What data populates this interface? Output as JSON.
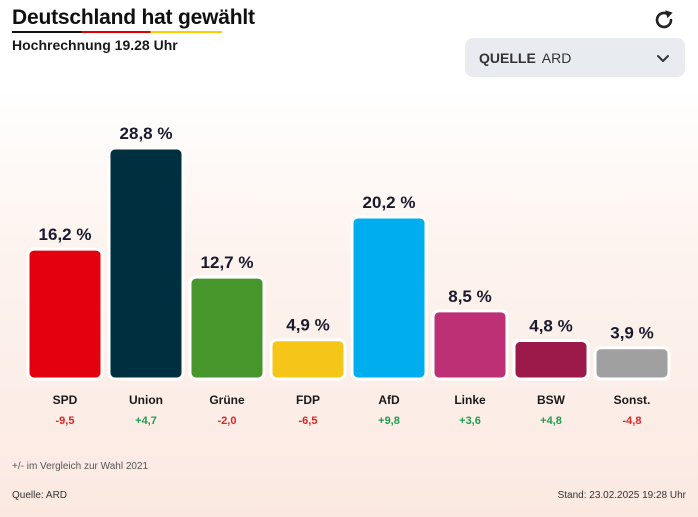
{
  "header": {
    "title": "Deutschland hat gewählt",
    "subtitle": "Hochrechnung 19.28 Uhr",
    "refresh_icon": "refresh-icon"
  },
  "source_select": {
    "label": "QUELLE",
    "value": "ARD",
    "icon": "chevron-down-icon"
  },
  "chart_data": {
    "type": "bar",
    "categories": [
      "SPD",
      "Union",
      "Grüne",
      "FDP",
      "AfD",
      "Linke",
      "BSW",
      "Sonst."
    ],
    "values": [
      16.2,
      28.8,
      12.7,
      4.9,
      20.2,
      8.5,
      4.8,
      3.9
    ],
    "value_labels": [
      "16,2 %",
      "28,8 %",
      "12,7 %",
      "4,9 %",
      "20,2 %",
      "8,5 %",
      "4,8 %",
      "3,9 %"
    ],
    "changes": [
      -9.5,
      4.7,
      -2.0,
      -6.5,
      9.8,
      3.6,
      4.8,
      -4.8
    ],
    "change_labels": [
      "-9,5",
      "+4,7",
      "-2,0",
      "-6,5",
      "+9,8",
      "+3,6",
      "+4,8",
      "-4,8"
    ],
    "colors": [
      "#e3000f",
      "#00303f",
      "#46962b",
      "#f5c518",
      "#00aeef",
      "#be3075",
      "#9c1a4a",
      "#a0a0a0"
    ],
    "positive_color": "#1e9e50",
    "negative_color": "#dc2626",
    "ylim": [
      0,
      30
    ],
    "grid": false,
    "legend": "none",
    "title": "",
    "xlabel": "",
    "ylabel": ""
  },
  "footnote": "+/- im Vergleich zur Wahl 2021",
  "footer": {
    "source": "Quelle: ARD",
    "stand": "Stand: 23.02.2025 19:28 Uhr"
  }
}
